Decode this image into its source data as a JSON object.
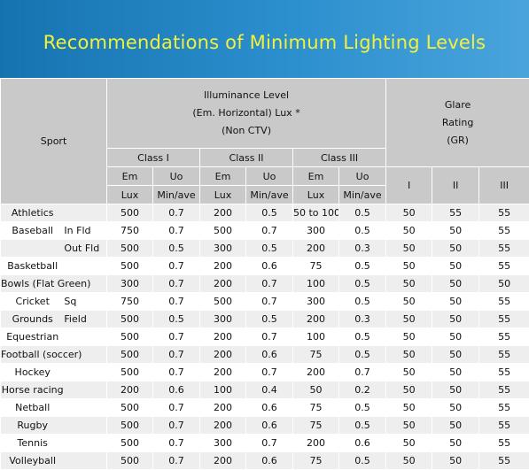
{
  "title": "Recommendations of Minimum Lighting Levels",
  "header": {
    "sport": "Sport",
    "illuminance": [
      "Illuminance Level",
      "(Em. Horizontal) Lux *",
      "(Non CTV)"
    ],
    "glare": [
      "Glare",
      "Rating",
      "(GR)"
    ],
    "classes": [
      "Class I",
      "Class II",
      "Class III"
    ],
    "em": "Em",
    "uo": "Uo",
    "lux": "Lux",
    "minave": "Min/ave",
    "gr": [
      "I",
      "II",
      "III"
    ]
  },
  "rows": [
    {
      "a": "Athletics",
      "b": "",
      "v": [
        "500",
        "0.7",
        "200",
        "0.5",
        "50 to 100",
        "0.5",
        "50",
        "55",
        "55"
      ]
    },
    {
      "a": "Baseball",
      "b": "In Fld",
      "v": [
        "750",
        "0.7",
        "500",
        "0.7",
        "300",
        "0.5",
        "50",
        "50",
        "55"
      ]
    },
    {
      "a": "",
      "b": "Out Fld",
      "v": [
        "500",
        "0.5",
        "300",
        "0.5",
        "200",
        "0.3",
        "50",
        "50",
        "55"
      ]
    },
    {
      "a": "Basketball",
      "b": "",
      "v": [
        "500",
        "0.7",
        "200",
        "0.6",
        "75",
        "0.5",
        "50",
        "50",
        "55"
      ]
    },
    {
      "a": "Bowls (Flat Green)",
      "b": "",
      "v": [
        "300",
        "0.7",
        "200",
        "0.7",
        "100",
        "0.5",
        "50",
        "50",
        "50"
      ]
    },
    {
      "a": "Cricket",
      "b": "Sq",
      "v": [
        "750",
        "0.7",
        "500",
        "0.7",
        "300",
        "0.5",
        "50",
        "50",
        "55"
      ]
    },
    {
      "a": "Grounds",
      "b": "Field",
      "v": [
        "500",
        "0.5",
        "300",
        "0.5",
        "200",
        "0.3",
        "50",
        "50",
        "55"
      ]
    },
    {
      "a": "Equestrian",
      "b": "",
      "v": [
        "500",
        "0.7",
        "200",
        "0.7",
        "100",
        "0.5",
        "50",
        "50",
        "55"
      ]
    },
    {
      "a": "Football (soccer)",
      "b": "",
      "v": [
        "500",
        "0.7",
        "200",
        "0.6",
        "75",
        "0.5",
        "50",
        "50",
        "55"
      ]
    },
    {
      "a": "Hockey",
      "b": "",
      "v": [
        "500",
        "0.7",
        "200",
        "0.7",
        "200",
        "0.7",
        "50",
        "50",
        "55"
      ]
    },
    {
      "a": "Horse racing",
      "b": "",
      "v": [
        "200",
        "0.6",
        "100",
        "0.4",
        "50",
        "0.2",
        "50",
        "50",
        "55"
      ]
    },
    {
      "a": "Netball",
      "b": "",
      "v": [
        "500",
        "0.7",
        "200",
        "0.6",
        "75",
        "0.5",
        "50",
        "50",
        "55"
      ]
    },
    {
      "a": "Rugby",
      "b": "",
      "v": [
        "500",
        "0.7",
        "200",
        "0.6",
        "75",
        "0.5",
        "50",
        "50",
        "55"
      ]
    },
    {
      "a": "Tennis",
      "b": "",
      "v": [
        "500",
        "0.7",
        "300",
        "0.7",
        "200",
        "0.6",
        "50",
        "50",
        "55"
      ]
    },
    {
      "a": "Volleyball",
      "b": "",
      "v": [
        "500",
        "0.7",
        "200",
        "0.6",
        "75",
        "0.5",
        "50",
        "50",
        "55"
      ]
    }
  ]
}
